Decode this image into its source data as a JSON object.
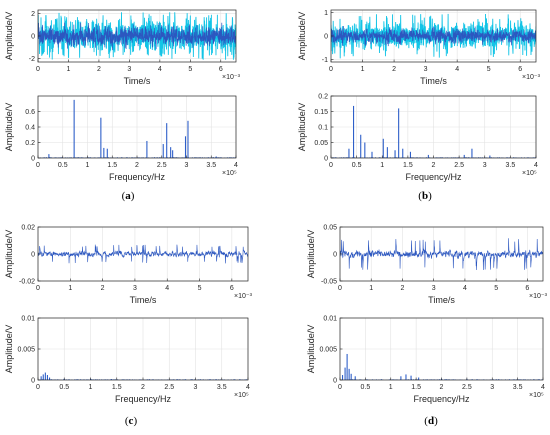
{
  "colors": {
    "signal_dark": "#2c57c0",
    "signal_light": "#12c4e6",
    "bar": "#2e5fc9",
    "grid": "#e2e2e2",
    "axis": "#262626"
  },
  "captions": [
    {
      "open": "(",
      "label": "a",
      "close": ")"
    },
    {
      "open": "(",
      "label": "b",
      "close": ")"
    },
    {
      "open": "(",
      "label": "c",
      "close": ")"
    },
    {
      "open": "(",
      "label": "d",
      "close": ")"
    }
  ],
  "chart_data": [
    {
      "id": "a-time",
      "type": "line",
      "panel": "a",
      "xlabel": "Time/s",
      "ylabel": "Amplitude/V",
      "xlim": [
        0,
        6.5
      ],
      "ylim": [
        -2.3,
        2.3
      ],
      "x_exponent": "×10⁻³",
      "xticks": [
        "0",
        "1",
        "2",
        "3",
        "4",
        "5",
        "6"
      ],
      "yticks": [
        "-2",
        "0",
        "2"
      ],
      "signal": {
        "amplitude": 1.6,
        "peak": 2.1,
        "style": "dense_two_tone"
      }
    },
    {
      "id": "a-freq",
      "type": "bar",
      "panel": "a",
      "xlabel": "Frequency/Hz",
      "ylabel": "Amplitude/V",
      "xlim": [
        0,
        4
      ],
      "ylim": [
        0,
        0.8
      ],
      "x_exponent": "×10⁵",
      "xticks": [
        "0",
        "0.5",
        "1",
        "1.5",
        "2",
        "2.5",
        "3",
        "3.5",
        "4"
      ],
      "yticks": [
        "0",
        "0.2",
        "0.4",
        "0.6"
      ],
      "peaks": [
        {
          "f": 0.22,
          "a": 0.05
        },
        {
          "f": 0.73,
          "a": 0.75
        },
        {
          "f": 1.27,
          "a": 0.52
        },
        {
          "f": 1.33,
          "a": 0.13
        },
        {
          "f": 1.4,
          "a": 0.12
        },
        {
          "f": 2.2,
          "a": 0.22
        },
        {
          "f": 2.53,
          "a": 0.18
        },
        {
          "f": 2.6,
          "a": 0.45
        },
        {
          "f": 2.68,
          "a": 0.14
        },
        {
          "f": 2.72,
          "a": 0.1
        },
        {
          "f": 2.98,
          "a": 0.28
        },
        {
          "f": 3.03,
          "a": 0.48
        },
        {
          "f": 3.6,
          "a": 0.02
        }
      ]
    },
    {
      "id": "b-time",
      "type": "line",
      "panel": "b",
      "xlabel": "Time/s",
      "ylabel": "Amplitude/V",
      "xlim": [
        0,
        6.5
      ],
      "ylim": [
        -1.1,
        1.1
      ],
      "x_exponent": "×10⁻³",
      "xticks": [
        "0",
        "1",
        "2",
        "3",
        "4",
        "5",
        "6"
      ],
      "yticks": [
        "-1",
        "0",
        "1"
      ],
      "signal": {
        "amplitude": 0.55,
        "peak": 0.95,
        "style": "dense_two_tone"
      }
    },
    {
      "id": "b-freq",
      "type": "bar",
      "panel": "b",
      "xlabel": "Frequency/Hz",
      "ylabel": "Amplitude/V",
      "xlim": [
        0,
        4
      ],
      "ylim": [
        0,
        0.2
      ],
      "x_exponent": "×10⁵",
      "xticks": [
        "0",
        "0.5",
        "1",
        "1.5",
        "2",
        "2.5",
        "3",
        "3.5",
        "4"
      ],
      "yticks": [
        "0",
        "0.05",
        "0.1",
        "0.15",
        "0.2"
      ],
      "peaks": [
        {
          "f": 0.35,
          "a": 0.03
        },
        {
          "f": 0.44,
          "a": 0.168
        },
        {
          "f": 0.58,
          "a": 0.075
        },
        {
          "f": 0.66,
          "a": 0.05
        },
        {
          "f": 0.8,
          "a": 0.02
        },
        {
          "f": 1.02,
          "a": 0.062
        },
        {
          "f": 1.1,
          "a": 0.035
        },
        {
          "f": 1.25,
          "a": 0.025
        },
        {
          "f": 1.32,
          "a": 0.16
        },
        {
          "f": 1.4,
          "a": 0.03
        },
        {
          "f": 1.55,
          "a": 0.02
        },
        {
          "f": 1.9,
          "a": 0.01
        },
        {
          "f": 2.6,
          "a": 0.01
        },
        {
          "f": 2.75,
          "a": 0.03
        },
        {
          "f": 3.1,
          "a": 0.008
        }
      ]
    },
    {
      "id": "c-time",
      "type": "line",
      "panel": "c",
      "xlabel": "Time/s",
      "ylabel": "Amplitude/V",
      "xlim": [
        0,
        6.5
      ],
      "ylim": [
        -0.02,
        0.02
      ],
      "x_exponent": "×10⁻³",
      "xticks": [
        "0",
        "1",
        "2",
        "3",
        "4",
        "5",
        "6"
      ],
      "yticks": [
        "-0.02",
        "0",
        "0.02"
      ],
      "signal": {
        "amplitude": 0.0035,
        "peak": 0.007,
        "style": "single_tone"
      }
    },
    {
      "id": "c-freq",
      "type": "bar",
      "panel": "c",
      "xlabel": "Frequency/Hz",
      "ylabel": "Amplitude/V",
      "xlim": [
        0,
        4
      ],
      "ylim": [
        0,
        0.01
      ],
      "x_exponent": "×10⁵",
      "xticks": [
        "0",
        "0.5",
        "1",
        "1.5",
        "2",
        "2.5",
        "3",
        "3.5",
        "4"
      ],
      "yticks": [
        "0",
        "0.005",
        "0.01"
      ],
      "peaks": [
        {
          "f": 0.06,
          "a": 0.0006
        },
        {
          "f": 0.1,
          "a": 0.0009
        },
        {
          "f": 0.14,
          "a": 0.0012
        },
        {
          "f": 0.18,
          "a": 0.0008
        },
        {
          "f": 0.22,
          "a": 0.0004
        },
        {
          "f": 0.5,
          "a": 0.0002
        },
        {
          "f": 1.0,
          "a": 0.0002
        },
        {
          "f": 1.4,
          "a": 0.00015
        }
      ]
    },
    {
      "id": "d-time",
      "type": "line",
      "panel": "d",
      "xlabel": "Time/s",
      "ylabel": "Amplitude/V",
      "xlim": [
        0,
        6.5
      ],
      "ylim": [
        -0.05,
        0.05
      ],
      "x_exponent": "×10⁻³",
      "xticks": [
        "0",
        "1",
        "2",
        "3",
        "4",
        "5",
        "6"
      ],
      "yticks": [
        "-0.05",
        "0",
        "0.05"
      ],
      "signal": {
        "amplitude": 0.012,
        "peak": 0.03,
        "style": "single_tone"
      }
    },
    {
      "id": "d-freq",
      "type": "bar",
      "panel": "d",
      "xlabel": "Frequency/Hz",
      "ylabel": "Amplitude/V",
      "xlim": [
        0,
        4
      ],
      "ylim": [
        0,
        0.01
      ],
      "x_exponent": "×10⁵",
      "xticks": [
        "0",
        "0.5",
        "1",
        "1.5",
        "2",
        "2.5",
        "3",
        "3.5",
        "4"
      ],
      "yticks": [
        "0",
        "0.005",
        "0.01"
      ],
      "peaks": [
        {
          "f": 0.05,
          "a": 0.0008
        },
        {
          "f": 0.1,
          "a": 0.002
        },
        {
          "f": 0.14,
          "a": 0.0042
        },
        {
          "f": 0.18,
          "a": 0.0018
        },
        {
          "f": 0.22,
          "a": 0.001
        },
        {
          "f": 0.3,
          "a": 0.0006
        },
        {
          "f": 1.2,
          "a": 0.0006
        },
        {
          "f": 1.3,
          "a": 0.0009
        },
        {
          "f": 1.4,
          "a": 0.0007
        },
        {
          "f": 1.55,
          "a": 0.0004
        },
        {
          "f": 2.0,
          "a": 0.0002
        },
        {
          "f": 2.5,
          "a": 0.0002
        }
      ]
    }
  ]
}
